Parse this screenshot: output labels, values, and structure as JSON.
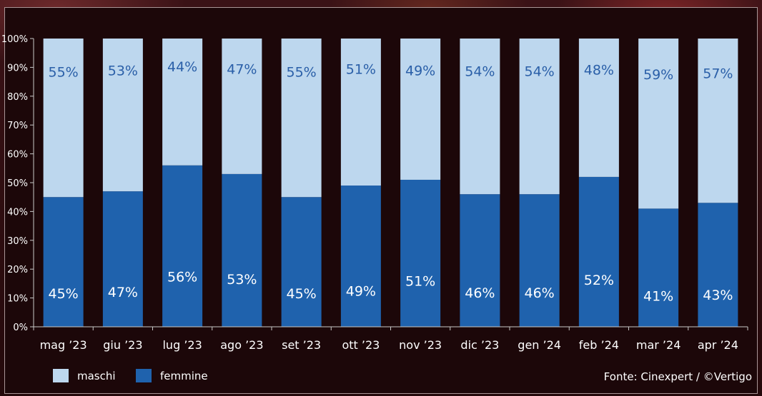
{
  "chart_data": {
    "type": "bar",
    "stacked": true,
    "percent": true,
    "categories": [
      "mag '23",
      "giu '23",
      "lug '23",
      "ago '23",
      "set '23",
      "ott '23",
      "nov '23",
      "dic '23",
      "gen '24",
      "feb '24",
      "mar '24",
      "apr '24"
    ],
    "series": [
      {
        "name": "femmine",
        "values": [
          45,
          47,
          56,
          53,
          45,
          49,
          51,
          46,
          46,
          52,
          41,
          43
        ],
        "labels": [
          "45%",
          "47%",
          "56%",
          "53%",
          "45%",
          "49%",
          "51%",
          "46%",
          "46%",
          "52%",
          "41%",
          "43%"
        ],
        "color": "#1f62ad",
        "label_color": "#ffffff"
      },
      {
        "name": "maschi",
        "values": [
          55,
          53,
          44,
          47,
          55,
          51,
          49,
          54,
          54,
          48,
          59,
          57
        ],
        "labels": [
          "55%",
          "53%",
          "44%",
          "47%",
          "55%",
          "51%",
          "49%",
          "54%",
          "54%",
          "48%",
          "59%",
          "57%"
        ],
        "color": "#bdd7ee",
        "label_color": "#2a5fa8"
      }
    ],
    "ylim": [
      0,
      100
    ],
    "yticks": [
      "0%",
      "10%",
      "20%",
      "30%",
      "40%",
      "50%",
      "60%",
      "70%",
      "80%",
      "90%",
      "100%"
    ],
    "legend_position": "bottom-left",
    "grid": false
  },
  "source_text": "Fonte: Cinexpert / ©Vertigo",
  "colors": {
    "panel_bg": "#1c0709",
    "axis": "#c8c8c8",
    "text": "#ffffff"
  }
}
